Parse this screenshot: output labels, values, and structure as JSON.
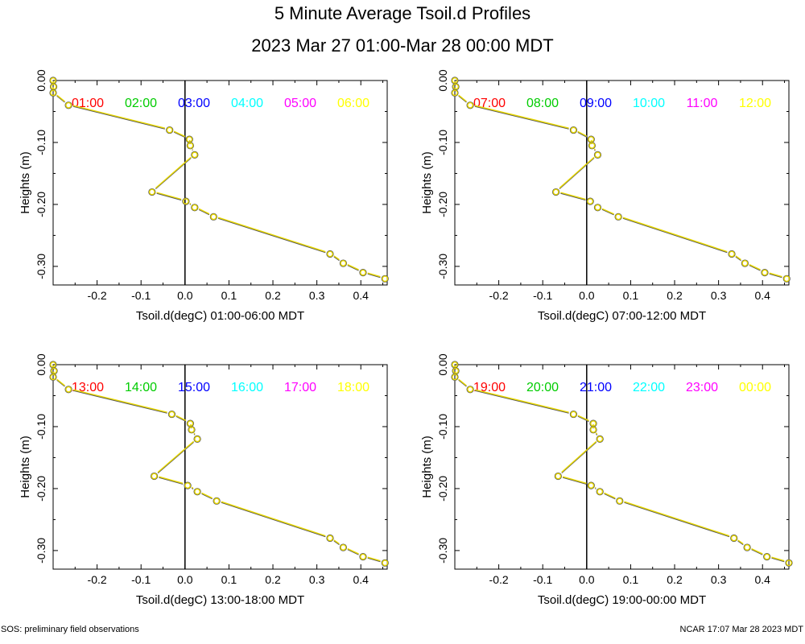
{
  "title": "5 Minute Average Tsoil.d Profiles",
  "subtitle": "2023 Mar 27 01:00-Mar 28 00:00 MDT",
  "footer_left": "SOS: preliminary field observations",
  "footer_right": "NCAR 17:07 Mar 28 2023 MDT",
  "chart_data": [
    {
      "type": "line",
      "xlabel": "Tsoil.d(degC) 01:00-06:00 MDT",
      "ylabel": "Heights (m)",
      "xlim": [
        -0.3,
        0.46
      ],
      "ylim": [
        -0.33,
        0.0
      ],
      "xticks": [
        "-0.2",
        "-0.1",
        "0.0",
        "0.1",
        "0.2",
        "0.3",
        "0.4"
      ],
      "yticks": [
        "0.00",
        "-0.10",
        "-0.20",
        "-0.30"
      ],
      "legend": [
        {
          "label": "01:00",
          "color": "#ff0000"
        },
        {
          "label": "02:00",
          "color": "#00cc00"
        },
        {
          "label": "03:00",
          "color": "#0000ff"
        },
        {
          "label": "04:00",
          "color": "#00ffff"
        },
        {
          "label": "05:00",
          "color": "#ff00ff"
        },
        {
          "label": "06:00",
          "color": "#ffff00"
        }
      ],
      "series": [
        {
          "name": "06:00",
          "color": "#e8d800",
          "temps": [
            -0.3,
            -0.299,
            -0.3,
            -0.265,
            -0.035,
            0.01,
            0.012,
            0.022,
            -0.075,
            0.002,
            0.022,
            0.065,
            0.33,
            0.36,
            0.405,
            0.455
          ],
          "heights": [
            0.0,
            -0.01,
            -0.02,
            -0.04,
            -0.08,
            -0.095,
            -0.105,
            -0.12,
            -0.18,
            -0.195,
            -0.205,
            -0.22,
            -0.28,
            -0.295,
            -0.31,
            -0.32
          ]
        }
      ]
    },
    {
      "type": "line",
      "xlabel": "Tsoil.d(degC) 07:00-12:00 MDT",
      "ylabel": "Heights (m)",
      "xlim": [
        -0.3,
        0.46
      ],
      "ylim": [
        -0.33,
        0.0
      ],
      "xticks": [
        "-0.2",
        "-0.1",
        "0.0",
        "0.1",
        "0.2",
        "0.3",
        "0.4"
      ],
      "yticks": [
        "0.00",
        "-0.10",
        "-0.20",
        "-0.30"
      ],
      "legend": [
        {
          "label": "07:00",
          "color": "#ff0000"
        },
        {
          "label": "08:00",
          "color": "#00cc00"
        },
        {
          "label": "09:00",
          "color": "#0000ff"
        },
        {
          "label": "10:00",
          "color": "#00ffff"
        },
        {
          "label": "11:00",
          "color": "#ff00ff"
        },
        {
          "label": "12:00",
          "color": "#ffff00"
        }
      ],
      "series": [
        {
          "name": "12:00",
          "color": "#e8d800",
          "temps": [
            -0.3,
            -0.298,
            -0.3,
            -0.265,
            -0.03,
            0.01,
            0.012,
            0.025,
            -0.07,
            0.008,
            0.025,
            0.072,
            0.33,
            0.36,
            0.405,
            0.455
          ],
          "heights": [
            0.0,
            -0.01,
            -0.02,
            -0.04,
            -0.08,
            -0.095,
            -0.105,
            -0.12,
            -0.18,
            -0.195,
            -0.205,
            -0.22,
            -0.28,
            -0.295,
            -0.31,
            -0.32
          ]
        }
      ]
    },
    {
      "type": "line",
      "xlabel": "Tsoil.d(degC) 13:00-18:00 MDT",
      "ylabel": "Heights (m)",
      "xlim": [
        -0.3,
        0.46
      ],
      "ylim": [
        -0.33,
        0.0
      ],
      "xticks": [
        "-0.2",
        "-0.1",
        "0.0",
        "0.1",
        "0.2",
        "0.3",
        "0.4"
      ],
      "yticks": [
        "0.00",
        "-0.10",
        "-0.20",
        "-0.30"
      ],
      "legend": [
        {
          "label": "13:00",
          "color": "#ff0000"
        },
        {
          "label": "14:00",
          "color": "#00cc00"
        },
        {
          "label": "15:00",
          "color": "#0000ff"
        },
        {
          "label": "16:00",
          "color": "#00ffff"
        },
        {
          "label": "17:00",
          "color": "#ff00ff"
        },
        {
          "label": "18:00",
          "color": "#ffff00"
        }
      ],
      "series": [
        {
          "name": "18:00",
          "color": "#e8d800",
          "temps": [
            -0.3,
            -0.298,
            -0.3,
            -0.265,
            -0.03,
            0.012,
            0.015,
            0.028,
            -0.07,
            0.006,
            0.028,
            0.072,
            0.33,
            0.36,
            0.405,
            0.455
          ],
          "heights": [
            0.0,
            -0.01,
            -0.02,
            -0.04,
            -0.08,
            -0.095,
            -0.105,
            -0.12,
            -0.18,
            -0.195,
            -0.205,
            -0.22,
            -0.28,
            -0.295,
            -0.31,
            -0.32
          ]
        }
      ]
    },
    {
      "type": "line",
      "xlabel": "Tsoil.d(degC) 19:00-00:00 MDT",
      "ylabel": "Heights (m)",
      "xlim": [
        -0.3,
        0.46
      ],
      "ylim": [
        -0.33,
        0.0
      ],
      "xticks": [
        "-0.2",
        "-0.1",
        "0.0",
        "0.1",
        "0.2",
        "0.3",
        "0.4"
      ],
      "yticks": [
        "0.00",
        "-0.10",
        "-0.20",
        "-0.30"
      ],
      "legend": [
        {
          "label": "19:00",
          "color": "#ff0000"
        },
        {
          "label": "20:00",
          "color": "#00cc00"
        },
        {
          "label": "21:00",
          "color": "#0000ff"
        },
        {
          "label": "22:00",
          "color": "#00ffff"
        },
        {
          "label": "23:00",
          "color": "#ff00ff"
        },
        {
          "label": "00:00",
          "color": "#ffff00"
        }
      ],
      "series": [
        {
          "name": "00:00",
          "color": "#e8d800",
          "temps": [
            -0.3,
            -0.298,
            -0.3,
            -0.265,
            -0.03,
            0.015,
            0.015,
            0.03,
            -0.065,
            0.01,
            0.03,
            0.075,
            0.335,
            0.365,
            0.41,
            0.46
          ],
          "heights": [
            0.0,
            -0.01,
            -0.02,
            -0.04,
            -0.08,
            -0.095,
            -0.105,
            -0.12,
            -0.18,
            -0.195,
            -0.205,
            -0.22,
            -0.28,
            -0.295,
            -0.31,
            -0.32
          ]
        }
      ]
    }
  ]
}
